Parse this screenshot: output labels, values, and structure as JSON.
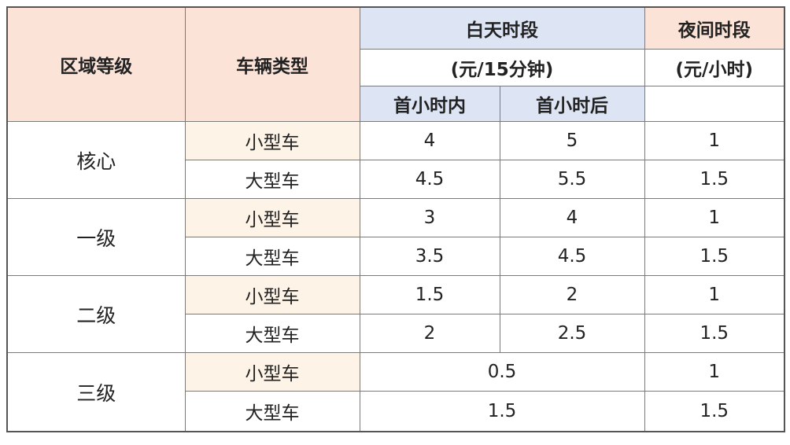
{
  "header": {
    "region": "区域等级",
    "vehicle": "车辆类型",
    "day": "白天时段",
    "day_unit": "(元/15分钟)",
    "night": "夜间时段",
    "night_unit": "(元/小时)",
    "first_hour_within": "首小时内",
    "first_hour_after": "首小时后"
  },
  "rows": [
    {
      "region": "核心",
      "items": [
        {
          "vehicle": "小型车",
          "within": "4",
          "after": "5",
          "night": "1"
        },
        {
          "vehicle": "大型车",
          "within": "4.5",
          "after": "5.5",
          "night": "1.5"
        }
      ]
    },
    {
      "region": "一级",
      "items": [
        {
          "vehicle": "小型车",
          "within": "3",
          "after": "4",
          "night": "1"
        },
        {
          "vehicle": "大型车",
          "within": "3.5",
          "after": "4.5",
          "night": "1.5"
        }
      ]
    },
    {
      "region": "二级",
      "items": [
        {
          "vehicle": "小型车",
          "within": "1.5",
          "after": "2",
          "night": "1"
        },
        {
          "vehicle": "大型车",
          "within": "2",
          "after": "2.5",
          "night": "1.5"
        }
      ]
    },
    {
      "region": "三级",
      "items": [
        {
          "vehicle": "小型车",
          "merged_day": "0.5",
          "night": "1"
        },
        {
          "vehicle": "大型车",
          "merged_day": "1.5",
          "night": "1.5"
        }
      ]
    }
  ]
}
